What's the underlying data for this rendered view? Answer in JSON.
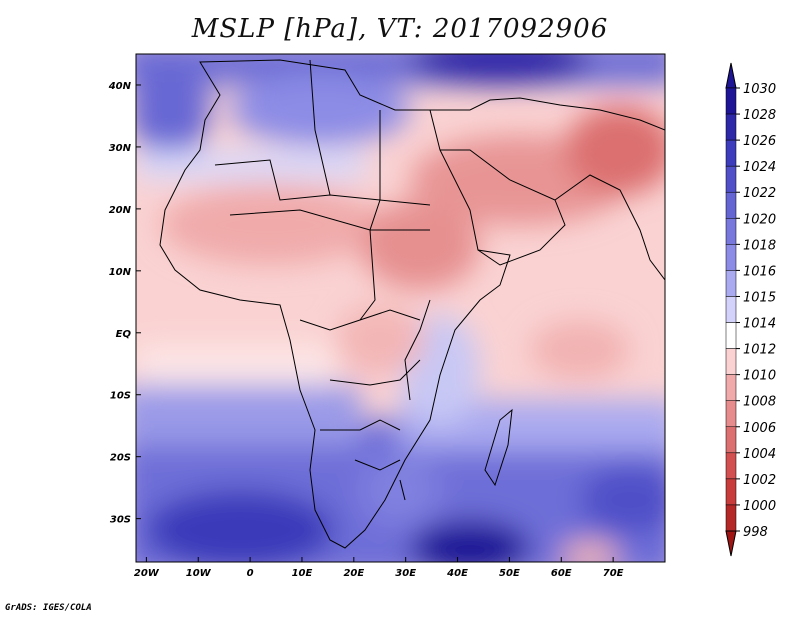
{
  "title": "MSLP [hPa], VT: 2017092906",
  "credit": "GrADS: IGES/COLA",
  "map": {
    "lon_range": [
      -22,
      80
    ],
    "lat_range": [
      -37,
      45
    ],
    "lon_ticks": [
      {
        "value": -20,
        "label": "20W"
      },
      {
        "value": -10,
        "label": "10W"
      },
      {
        "value": 0,
        "label": "0"
      },
      {
        "value": 10,
        "label": "10E"
      },
      {
        "value": 20,
        "label": "20E"
      },
      {
        "value": 30,
        "label": "30E"
      },
      {
        "value": 40,
        "label": "40E"
      },
      {
        "value": 50,
        "label": "50E"
      },
      {
        "value": 60,
        "label": "60E"
      },
      {
        "value": 70,
        "label": "70E"
      }
    ],
    "lat_ticks": [
      {
        "value": 40,
        "label": "40N"
      },
      {
        "value": 30,
        "label": "30N"
      },
      {
        "value": 20,
        "label": "20N"
      },
      {
        "value": 10,
        "label": "10N"
      },
      {
        "value": 0,
        "label": "EQ"
      },
      {
        "value": -10,
        "label": "10S"
      },
      {
        "value": -20,
        "label": "20S"
      },
      {
        "value": -30,
        "label": "30S"
      }
    ]
  },
  "colorbar": {
    "levels": [
      "1030",
      "1028",
      "1026",
      "1024",
      "1022",
      "1020",
      "1018",
      "1016",
      "1015",
      "1014",
      "1012",
      "1010",
      "1008",
      "1006",
      "1004",
      "1002",
      "1000",
      "998"
    ],
    "colors": [
      "#1e1496",
      "#2d28a8",
      "#3c3cbc",
      "#5050c8",
      "#6464d2",
      "#7878dc",
      "#8c8ce6",
      "#aaaaf0",
      "#d2d2fa",
      "#ffffff",
      "#fad2d2",
      "#f0aaaa",
      "#e68c8c",
      "#dc7070",
      "#d25050",
      "#c83c3c",
      "#b42828",
      "#a01414"
    ]
  },
  "chart_data": {
    "type": "heatmap",
    "title": "MSLP [hPa], VT: 2017092906",
    "x_range": [
      -22,
      80
    ],
    "y_range": [
      -37,
      45
    ],
    "pressure_features": [
      {
        "lon": 0,
        "lat": -32,
        "value": 1026
      },
      {
        "lon": 44,
        "lat": -35,
        "value": 1028
      },
      {
        "lon": 20,
        "lat": 44,
        "value": 1020
      },
      {
        "lon": 45,
        "lat": 25,
        "value": 1008
      },
      {
        "lon": 20,
        "lat": 15,
        "value": 1010
      },
      {
        "lon": 60,
        "lat": -4,
        "value": 1011
      },
      {
        "lon": 75,
        "lat": 30,
        "value": 1005
      }
    ]
  }
}
